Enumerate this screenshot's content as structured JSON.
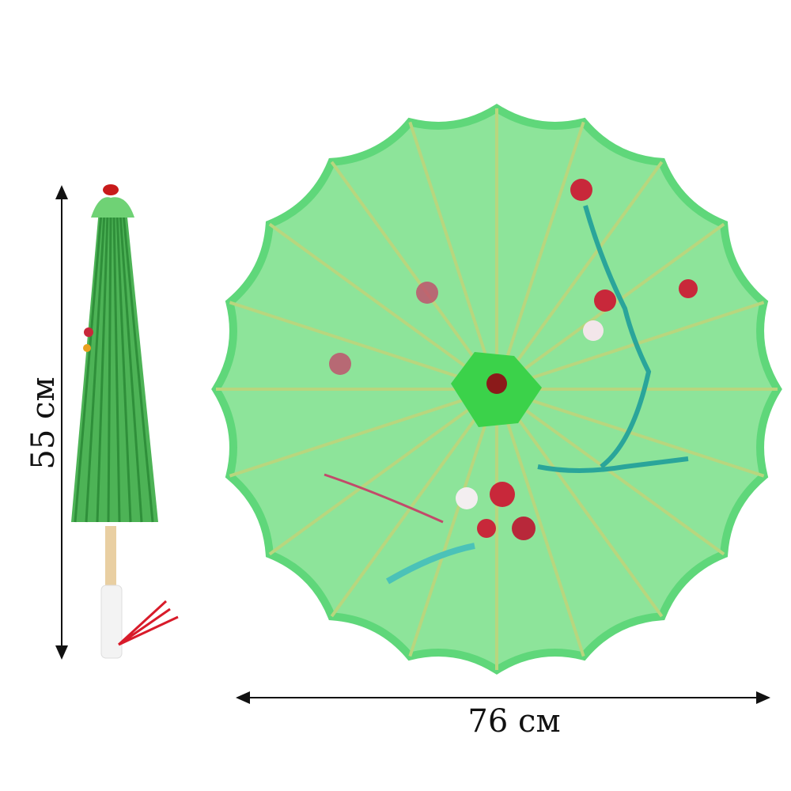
{
  "dimensions": {
    "height_label": "55 см",
    "width_label": "76 см"
  },
  "colors": {
    "canopy": "#8de49a",
    "canopy_edge": "#5fd77a",
    "rib": "#b8d67e",
    "tip": "#8b1a1a",
    "tassel": "#d81b2a"
  }
}
